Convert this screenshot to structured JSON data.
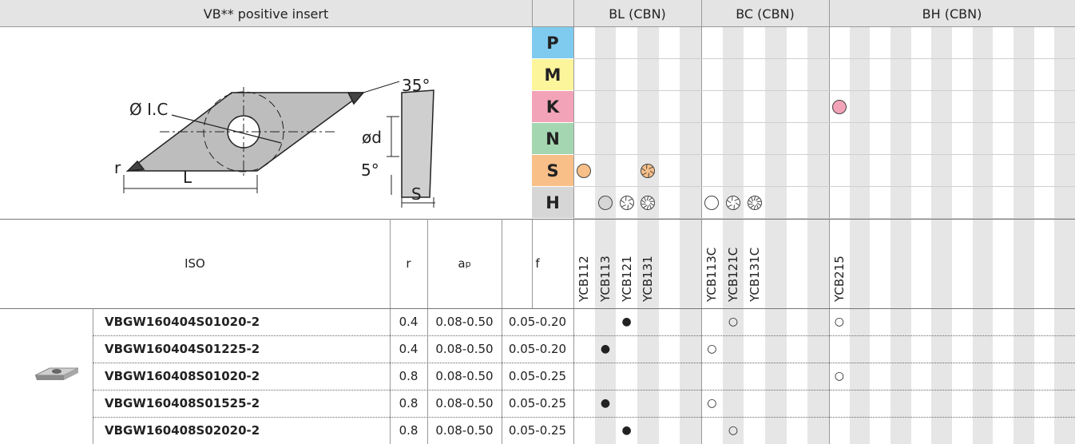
{
  "header": {
    "title": "VB** positive insert"
  },
  "diagram": {
    "ic": "Ø I.C",
    "angle": "35°",
    "d": "ød",
    "clearance": "5°",
    "r": "r",
    "L": "L",
    "S": "S"
  },
  "materials": [
    {
      "letter": "P",
      "color": "#7fcbef"
    },
    {
      "letter": "M",
      "color": "#fdf59c"
    },
    {
      "letter": "K",
      "color": "#f3a3b8"
    },
    {
      "letter": "N",
      "color": "#a3d6b1"
    },
    {
      "letter": "S",
      "color": "#f8bf88"
    },
    {
      "letter": "H",
      "color": "#d6d6d6"
    }
  ],
  "groups": [
    {
      "name": "BL (CBN)",
      "grades": [
        "YCB112",
        "YCB113",
        "YCB121",
        "YCB131"
      ]
    },
    {
      "name": "BC (CBN)",
      "grades": [
        "YCB113C",
        "YCB121C",
        "YCB131C"
      ]
    },
    {
      "name": "BH (CBN)",
      "grades": [
        "YCB215"
      ]
    }
  ],
  "columns": {
    "iso": "ISO",
    "r": "r",
    "ap": {
      "base": "a",
      "sub": "p"
    },
    "f": "f"
  },
  "rows": [
    {
      "iso": "VBGW160404S01020-2",
      "r": 0.4,
      "ap": "0.08-0.50",
      "f": "0.05-0.20",
      "marks": {
        "YCB121": "●",
        "YCB121C": "○",
        "YCB215": "○"
      }
    },
    {
      "iso": "VBGW160404S01225-2",
      "r": 0.4,
      "ap": "0.08-0.50",
      "f": "0.05-0.20",
      "marks": {
        "YCB113": "●",
        "YCB113C": "○"
      }
    },
    {
      "iso": "VBGW160408S01020-2",
      "r": 0.8,
      "ap": "0.08-0.50",
      "f": "0.05-0.25",
      "marks": {
        "YCB215": "○"
      }
    },
    {
      "iso": "VBGW160408S01525-2",
      "r": 0.8,
      "ap": "0.08-0.50",
      "f": "0.05-0.25",
      "marks": {
        "YCB113": "●",
        "YCB113C": "○"
      }
    },
    {
      "iso": "VBGW160408S02020-2",
      "r": 0.8,
      "ap": "0.08-0.50",
      "f": "0.05-0.25",
      "marks": {
        "YCB121": "●",
        "YCB121C": "○"
      }
    }
  ]
}
